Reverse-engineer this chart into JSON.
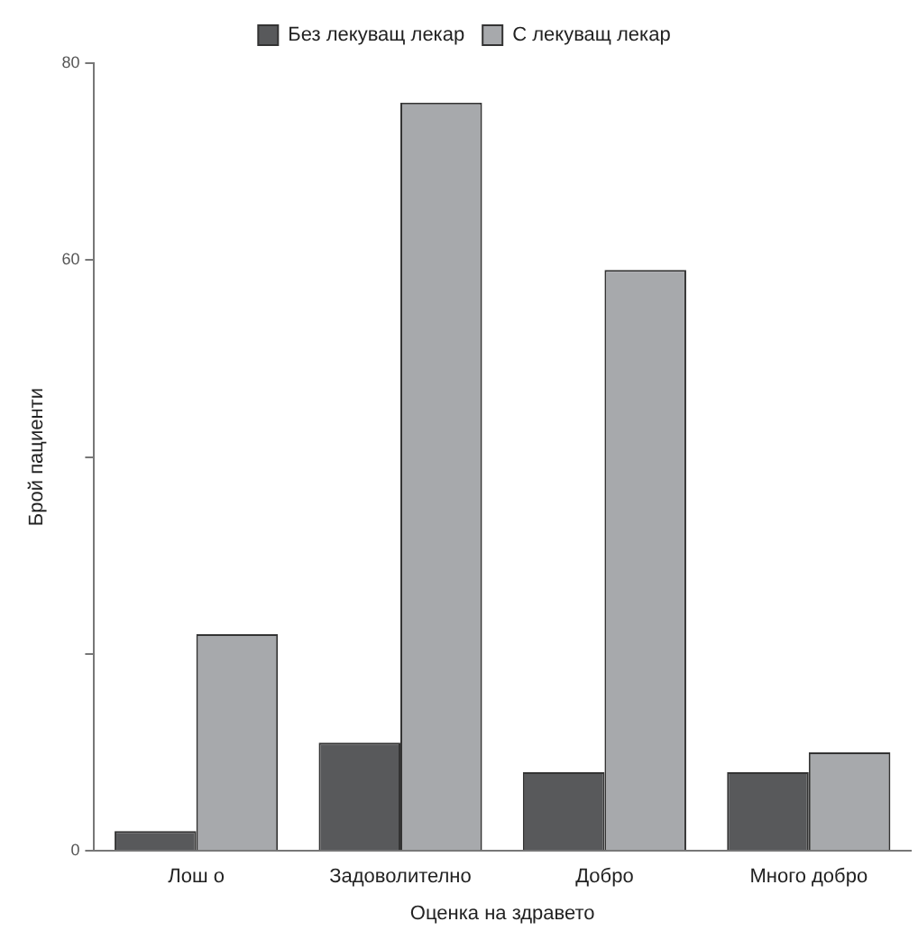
{
  "chart_data": {
    "type": "bar",
    "xlabel": "Оценка на здравето",
    "ylabel": "Брой пациенти",
    "categories": [
      "Лош о",
      "Задоволително",
      "Добро",
      "Много добро"
    ],
    "series": [
      {
        "name": "Без лекуващ лекар",
        "color": "#58595b",
        "values": [
          2,
          11,
          8,
          8
        ]
      },
      {
        "name": "С лекуващ лекар",
        "color": "#a7a9ac",
        "values": [
          22,
          76,
          59,
          10
        ]
      }
    ],
    "ylim": [
      0,
      80
    ],
    "yticks": [
      0,
      {
        "value": 20,
        "label": null
      },
      {
        "value": 40,
        "label": null
      },
      60,
      80
    ],
    "grid": false,
    "legend": "top"
  }
}
